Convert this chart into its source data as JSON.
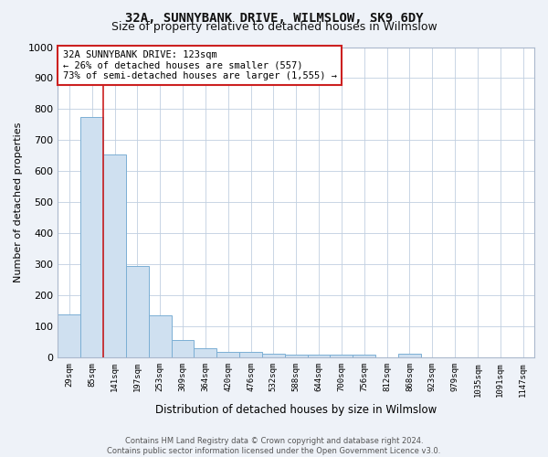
{
  "title": "32A, SUNNYBANK DRIVE, WILMSLOW, SK9 6DY",
  "subtitle": "Size of property relative to detached houses in Wilmslow",
  "xlabel": "Distribution of detached houses by size in Wilmslow",
  "ylabel": "Number of detached properties",
  "categories": [
    "29sqm",
    "85sqm",
    "141sqm",
    "197sqm",
    "253sqm",
    "309sqm",
    "364sqm",
    "420sqm",
    "476sqm",
    "532sqm",
    "588sqm",
    "644sqm",
    "700sqm",
    "756sqm",
    "812sqm",
    "868sqm",
    "923sqm",
    "979sqm",
    "1035sqm",
    "1091sqm",
    "1147sqm"
  ],
  "values": [
    140,
    775,
    655,
    295,
    135,
    57,
    30,
    18,
    18,
    11,
    8,
    8,
    8,
    8,
    0,
    11,
    0,
    0,
    0,
    0,
    0
  ],
  "bar_color": "#cfe0f0",
  "bar_edge_color": "#7bafd4",
  "vline_x": 1.5,
  "ylim": [
    0,
    1000
  ],
  "yticks": [
    0,
    100,
    200,
    300,
    400,
    500,
    600,
    700,
    800,
    900,
    1000
  ],
  "annotation_box_text": "32A SUNNYBANK DRIVE: 123sqm\n← 26% of detached houses are smaller (557)\n73% of semi-detached houses are larger (1,555) →",
  "footer_line1": "Contains HM Land Registry data © Crown copyright and database right 2024.",
  "footer_line2": "Contains public sector information licensed under the Open Government Licence v3.0.",
  "bg_color": "#eef2f8",
  "plot_bg_color": "#ffffff",
  "grid_color": "#c0cfe0",
  "vline_color": "#cc2020",
  "ann_box_edge_color": "#cc2020",
  "title_fontsize": 10,
  "subtitle_fontsize": 9
}
